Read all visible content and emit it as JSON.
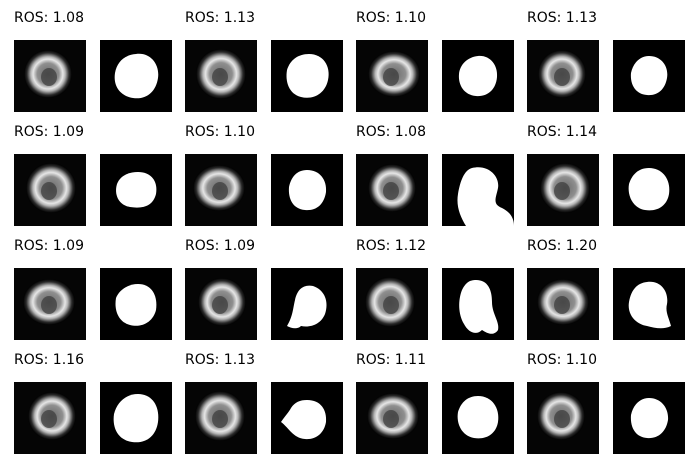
{
  "panels": [
    {
      "label": "ROS: 1.08"
    },
    {
      "label": "ROS: 1.13"
    },
    {
      "label": "ROS: 1.10"
    },
    {
      "label": "ROS: 1.13"
    },
    {
      "label": "ROS: 1.09"
    },
    {
      "label": "ROS: 1.10"
    },
    {
      "label": "ROS: 1.08"
    },
    {
      "label": "ROS: 1.14"
    },
    {
      "label": "ROS: 1.09"
    },
    {
      "label": "ROS: 1.09"
    },
    {
      "label": "ROS: 1.12"
    },
    {
      "label": "ROS: 1.20"
    },
    {
      "label": "ROS: 1.16"
    },
    {
      "label": "ROS: 1.13"
    },
    {
      "label": "ROS: 1.11"
    },
    {
      "label": "ROS: 1.10"
    }
  ]
}
